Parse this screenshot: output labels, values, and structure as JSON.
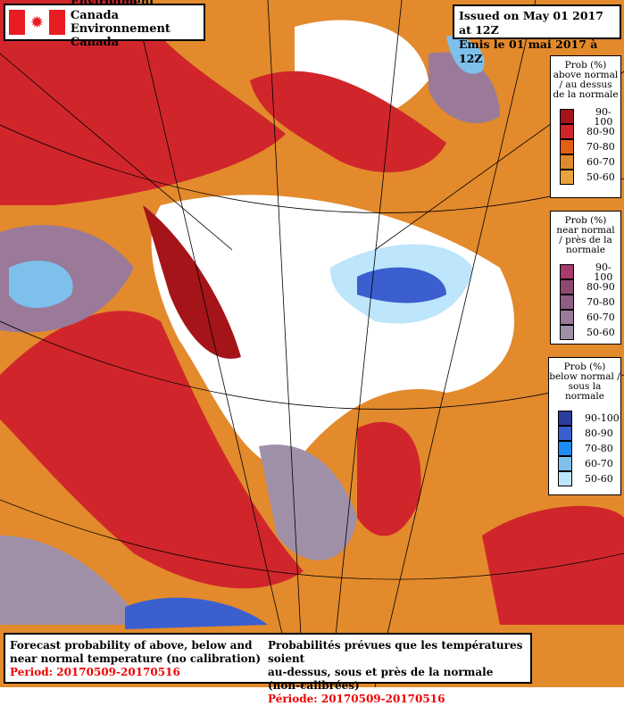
{
  "logo": {
    "line1": "Environment Canada",
    "line2": "Environnement Canada"
  },
  "issued": {
    "en": "Issued on May 01 2017 at 12Z",
    "fr": "Émis le 01 mai 2017 à 12Z"
  },
  "legends": [
    {
      "title": [
        "Prob (%)",
        "above normal",
        "/ au dessus",
        "de la normale"
      ],
      "items": [
        {
          "label": "90-100",
          "color": "#a51419"
        },
        {
          "label": "80-90",
          "color": "#d0262b"
        },
        {
          "label": "70-80",
          "color": "#e35f14"
        },
        {
          "label": "60-70",
          "color": "#e08a2e"
        },
        {
          "label": "50-60",
          "color": "#eaa23d"
        }
      ]
    },
    {
      "title": [
        "Prob (%)",
        "near normal",
        "/ près de la",
        "normale"
      ],
      "items": [
        {
          "label": "90-100",
          "color": "#a83a6e"
        },
        {
          "label": "80-90",
          "color": "#8e4a6e"
        },
        {
          "label": "70-80",
          "color": "#8e5e86"
        },
        {
          "label": "60-70",
          "color": "#9a7a98"
        },
        {
          "label": "50-60",
          "color": "#9f90a8"
        }
      ]
    },
    {
      "title": [
        "Prob (%)",
        "below normal /",
        "sous la normale"
      ],
      "items": [
        {
          "label": "90-100",
          "color": "#2b3d9b"
        },
        {
          "label": "80-90",
          "color": "#3b5fcf"
        },
        {
          "label": "70-80",
          "color": "#1e8cf5"
        },
        {
          "label": "60-70",
          "color": "#7ec0ec"
        },
        {
          "label": "50-60",
          "color": "#bde5fb"
        }
      ]
    }
  ],
  "footer": {
    "en1": "Forecast probability of above, below and",
    "en2": "near normal temperature (no calibration)",
    "en_period": "Period: 20170509-20170516",
    "fr1": "Probabilités prévues que les températures soient",
    "fr2": "au-dessus, sous et près de la normale (non-calibrées)",
    "fr_period": "Période: 20170509-20170516"
  }
}
